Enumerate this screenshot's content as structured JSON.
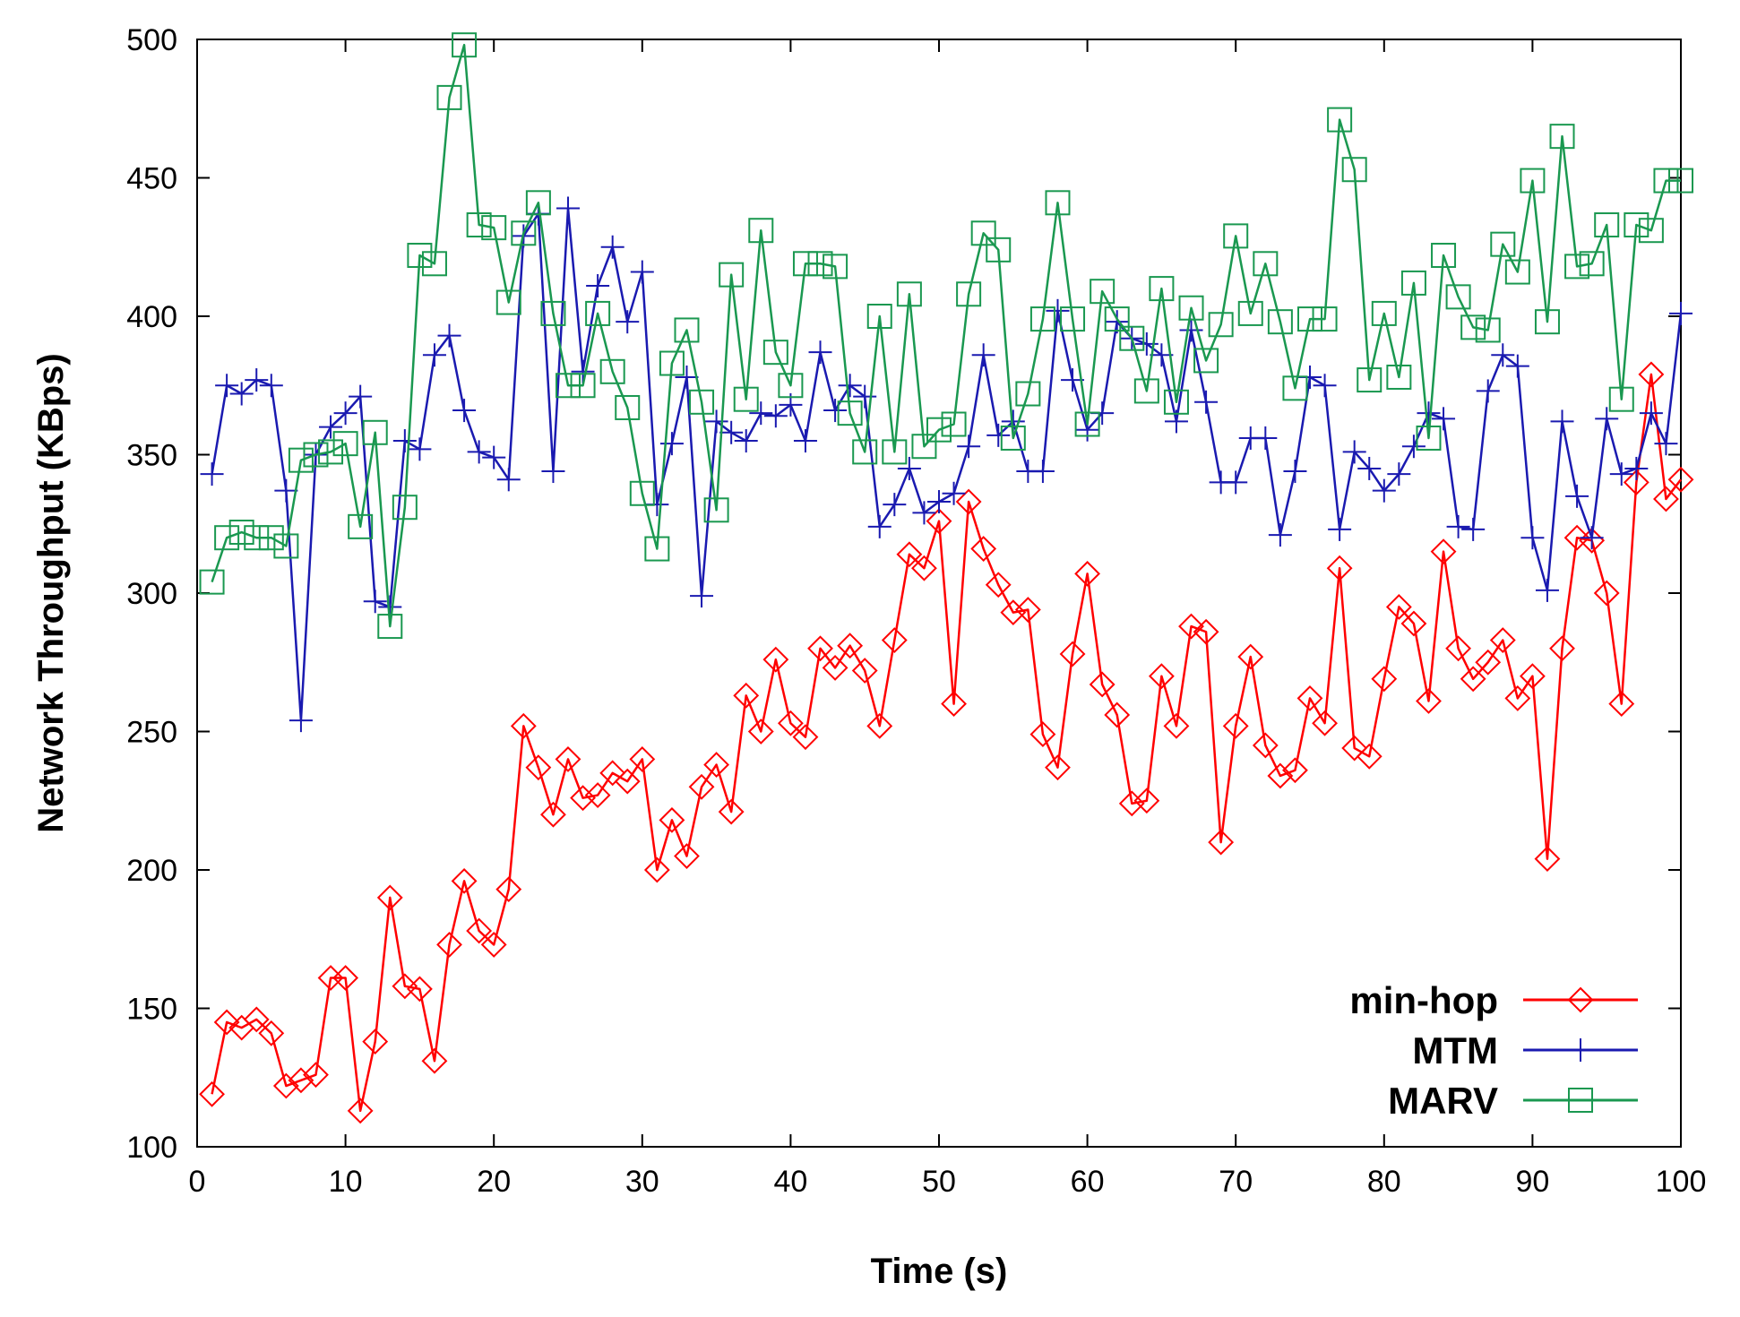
{
  "chart_data": {
    "type": "line",
    "title": "",
    "xlabel": "Time (s)",
    "ylabel": "Network Throughput (KBps)",
    "xlim": [
      0,
      100
    ],
    "ylim": [
      100,
      500
    ],
    "xticks": [
      0,
      10,
      20,
      30,
      40,
      50,
      60,
      70,
      80,
      90,
      100
    ],
    "yticks": [
      100,
      150,
      200,
      250,
      300,
      350,
      400,
      450,
      500
    ],
    "grid": false,
    "legend_position": "bottom-right",
    "x": [
      1,
      2,
      3,
      4,
      5,
      6,
      7,
      8,
      9,
      10,
      11,
      12,
      13,
      14,
      15,
      16,
      17,
      18,
      19,
      20,
      21,
      22,
      23,
      24,
      25,
      26,
      27,
      28,
      29,
      30,
      31,
      32,
      33,
      34,
      35,
      36,
      37,
      38,
      39,
      40,
      41,
      42,
      43,
      44,
      45,
      46,
      47,
      48,
      49,
      50,
      51,
      52,
      53,
      54,
      55,
      56,
      57,
      58,
      59,
      60,
      61,
      62,
      63,
      64,
      65,
      66,
      67,
      68,
      69,
      70,
      71,
      72,
      73,
      74,
      75,
      76,
      77,
      78,
      79,
      80,
      81,
      82,
      83,
      84,
      85,
      86,
      87,
      88,
      89,
      90,
      91,
      92,
      93,
      94,
      95,
      96,
      97,
      98,
      99,
      100
    ],
    "series": [
      {
        "name": "min-hop",
        "color": "#ff0000",
        "marker": "diamond",
        "values": [
          119,
          145,
          143,
          146,
          141,
          122,
          124,
          126,
          161,
          161,
          113,
          138,
          190,
          158,
          157,
          131,
          173,
          196,
          178,
          173,
          193,
          252,
          237,
          220,
          240,
          226,
          227,
          235,
          232,
          240,
          200,
          218,
          205,
          230,
          238,
          221,
          263,
          250,
          276,
          253,
          248,
          280,
          273,
          281,
          272,
          252,
          283,
          314,
          309,
          326,
          260,
          333,
          316,
          303,
          293,
          294,
          249,
          237,
          278,
          307,
          267,
          256,
          224,
          225,
          270,
          252,
          288,
          286,
          210,
          252,
          277,
          245,
          234,
          236,
          262,
          253,
          309,
          244,
          241,
          269,
          295,
          289,
          261,
          315,
          280,
          269,
          275,
          283,
          262,
          270,
          204,
          280,
          320,
          319,
          300,
          260,
          340,
          379,
          334,
          341
        ]
      },
      {
        "name": "MTM",
        "color": "#1a1ab0",
        "marker": "plus",
        "values": [
          343,
          375,
          372,
          377,
          375,
          337,
          254,
          350,
          360,
          365,
          371,
          297,
          295,
          355,
          352,
          386,
          393,
          366,
          351,
          349,
          341,
          429,
          437,
          344,
          439,
          380,
          411,
          425,
          398,
          416,
          332,
          354,
          378,
          299,
          362,
          358,
          355,
          365,
          364,
          368,
          355,
          387,
          366,
          375,
          371,
          324,
          332,
          345,
          329,
          333,
          336,
          353,
          386,
          357,
          362,
          344,
          344,
          402,
          377,
          359,
          365,
          398,
          392,
          390,
          386,
          362,
          395,
          369,
          340,
          340,
          356,
          356,
          321,
          344,
          378,
          375,
          323,
          351,
          345,
          337,
          343,
          353,
          365,
          363,
          324,
          323,
          373,
          386,
          382,
          320,
          301,
          362,
          335,
          320,
          363,
          343,
          345,
          365,
          354,
          401
        ]
      },
      {
        "name": "MARV",
        "color": "#1a9850",
        "marker": "square",
        "values": [
          304,
          320,
          322,
          320,
          320,
          317,
          348,
          350,
          351,
          354,
          324,
          358,
          288,
          331,
          422,
          419,
          479,
          498,
          433,
          432,
          405,
          430,
          441,
          401,
          375,
          375,
          401,
          380,
          367,
          336,
          316,
          383,
          395,
          369,
          330,
          415,
          370,
          431,
          387,
          375,
          419,
          419,
          418,
          365,
          351,
          400,
          351,
          408,
          353,
          359,
          361,
          408,
          430,
          424,
          356,
          372,
          399,
          441,
          399,
          361,
          409,
          399,
          392,
          373,
          410,
          369,
          403,
          384,
          397,
          429,
          401,
          419,
          398,
          374,
          399,
          399,
          471,
          453,
          377,
          401,
          378,
          412,
          356,
          422,
          407,
          396,
          395,
          426,
          416,
          449,
          398,
          465,
          418,
          419,
          433,
          370,
          433,
          431,
          449,
          449
        ]
      }
    ]
  }
}
